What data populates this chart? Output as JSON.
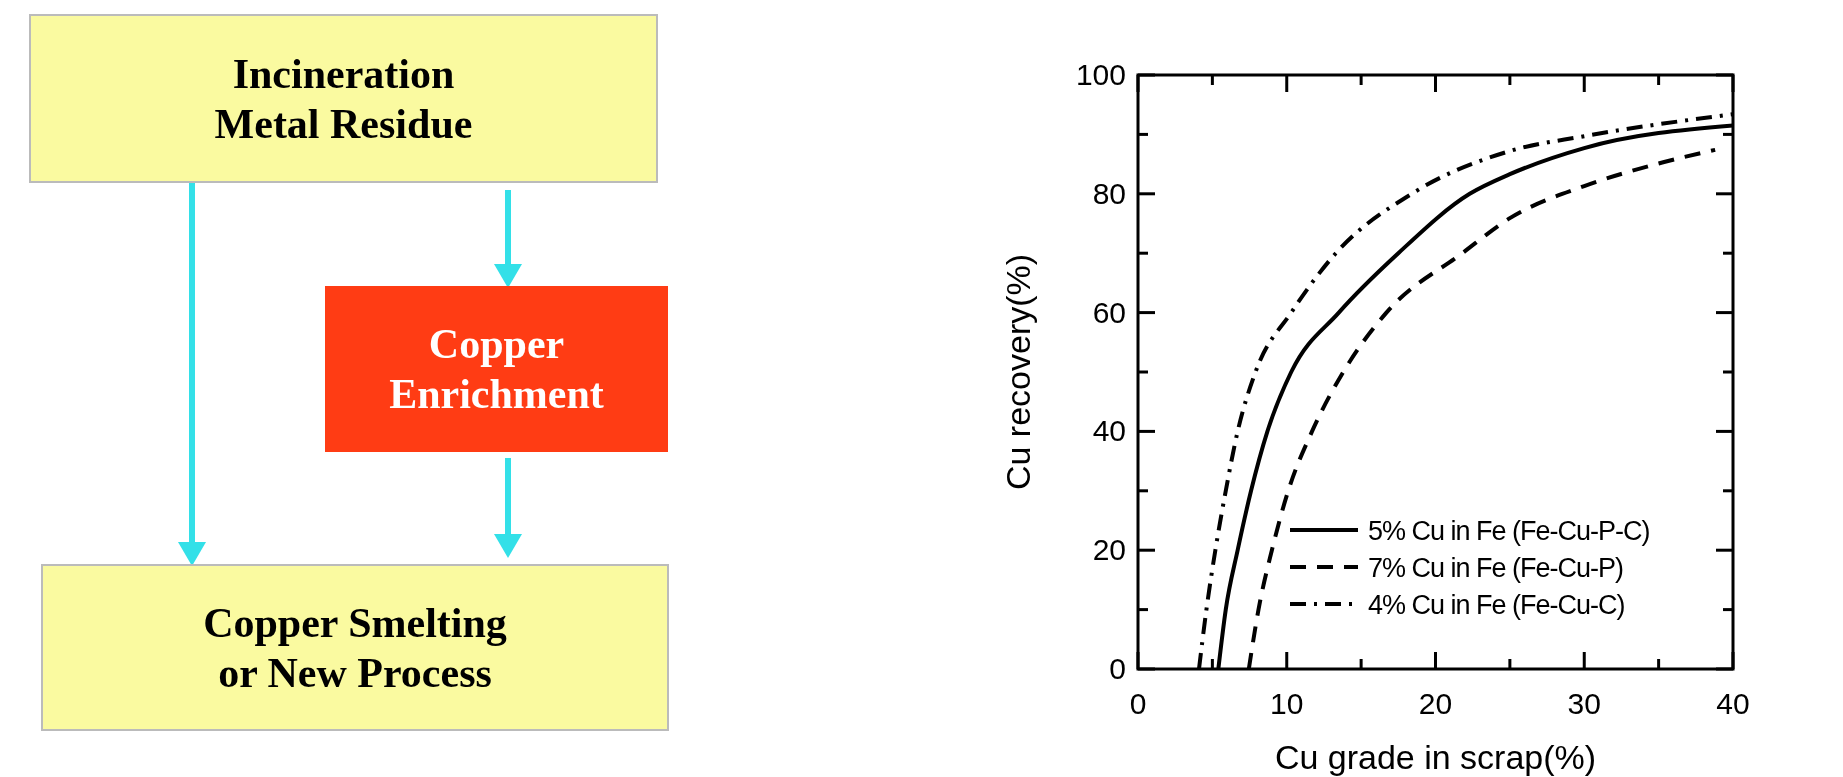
{
  "chart_data": [
    {
      "type": "other",
      "annotations": [
        "Incineration Metal Residue",
        "Copper Enrichment",
        "Copper Smelting or New Process"
      ]
    },
    {
      "type": "line",
      "xlabel": "Cu grade in scrap(%)",
      "ylabel": "Cu recovery(%)",
      "xlim": [
        0,
        40
      ],
      "ylim": [
        0,
        100
      ],
      "xticks": [
        0,
        {
          "value": 5,
          "label": null
        },
        10,
        {
          "value": 15,
          "label": null
        },
        20,
        {
          "value": 25,
          "label": null
        },
        30,
        {
          "value": 35,
          "label": null
        },
        40
      ],
      "yticks": [
        0,
        {
          "value": 10,
          "label": null
        },
        20,
        {
          "value": 30,
          "label": null
        },
        40,
        {
          "value": 50,
          "label": null
        },
        60,
        {
          "value": 70,
          "label": null
        },
        80,
        {
          "value": 90,
          "label": null
        },
        100
      ],
      "grid": false,
      "legend": "bottom right",
      "marker": "none",
      "series": [
        {
          "name": "5% Cu in Fe (Fe-Cu-P-C)",
          "color": "#000000",
          "line_style": "solid",
          "x": [
            5.4,
            5.9,
            6.7,
            7.6,
            8.7,
            10.3,
            13.5,
            17.5,
            22.3,
            25,
            30,
            40
          ],
          "values": [
            0,
            10,
            20,
            30,
            40,
            50,
            60,
            70,
            80,
            83.3,
            87.7,
            91.5
          ]
        },
        {
          "name": "7% Cu in Fe (Fe-Cu-P)",
          "color": "#000000",
          "line_style": "dashed",
          "x": [
            7.45,
            8.1,
            9.0,
            10.1,
            11.7,
            13.8,
            16.7,
            21.8,
            25,
            30,
            35,
            38.8
          ],
          "values": [
            0,
            10,
            20,
            30,
            40,
            50,
            60,
            70,
            75.9,
            81.3,
            85.1,
            87.4
          ]
        },
        {
          "name": "4% Cu in Fe (Fe-Cu-C)",
          "color": "#000000",
          "line_style": "dashdot",
          "x": [
            4.1,
            4.6,
            5.2,
            5.9,
            6.7,
            7.9,
            10.3,
            13.3,
            18.4,
            25,
            30,
            40
          ],
          "values": [
            0,
            10,
            20,
            30,
            40,
            50,
            60,
            70,
            80,
            87.2,
            89.7,
            93.4
          ]
        }
      ]
    }
  ]
}
